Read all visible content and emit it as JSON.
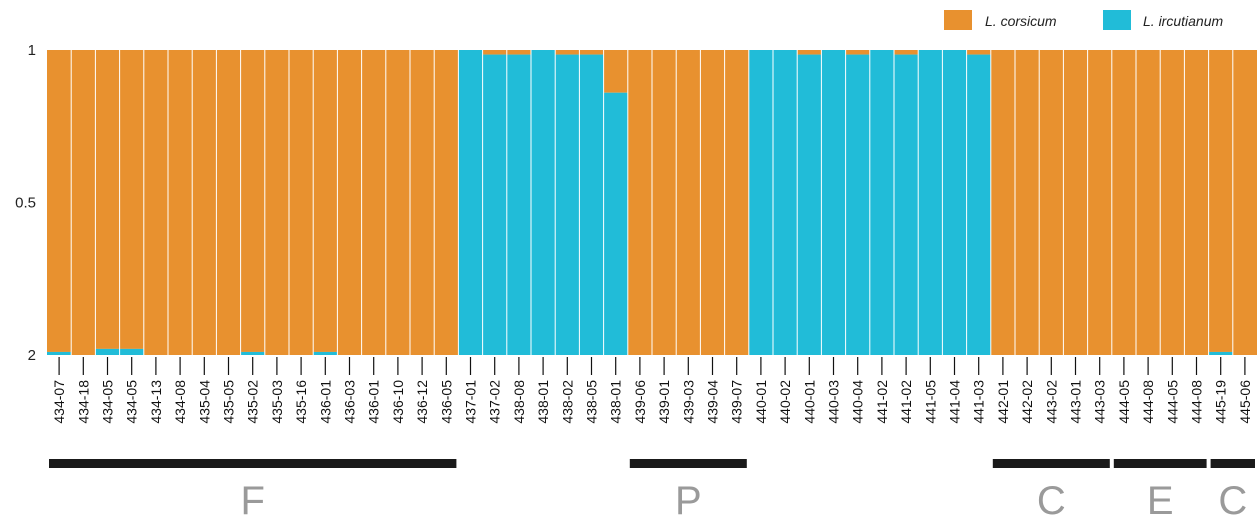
{
  "chart_data": {
    "type": "bar",
    "stacked": true,
    "ylim": [
      0,
      1
    ],
    "yticks": [
      {
        "value": 1,
        "label": "1"
      },
      {
        "value": 0.5,
        "label": "0.5"
      },
      {
        "value": 0,
        "label": "2"
      }
    ],
    "legend_position": "top-right",
    "series": [
      {
        "name": "L. corsicum",
        "color": "#E8912F"
      },
      {
        "name": "L. ircutianum",
        "color": "#21BCD8"
      }
    ],
    "categories": [
      "434-07",
      "434-18",
      "434-05",
      "434-05",
      "434-13",
      "434-08",
      "435-04",
      "435-05",
      "435-02",
      "435-03",
      "435-16",
      "436-01",
      "436-03",
      "436-01",
      "436-10",
      "436-12",
      "436-05",
      "437-01",
      "437-02",
      "438-08",
      "438-01",
      "438-02",
      "438-05",
      "438-01",
      "439-06",
      "439-01",
      "439-03",
      "439-04",
      "439-07",
      "440-01",
      "440-02",
      "440-01",
      "440-03",
      "440-04",
      "441-02",
      "441-02",
      "441-05",
      "441-04",
      "441-03",
      "442-01",
      "442-02",
      "443-02",
      "443-01",
      "443-03",
      "444-05",
      "444-08",
      "444-05",
      "444-08",
      "445-19",
      "445-06"
    ],
    "ircutianum_fraction": [
      0.01,
      0,
      0.02,
      0.02,
      0,
      0,
      0,
      0,
      0.01,
      0,
      0,
      0.01,
      0,
      0,
      0,
      0,
      0,
      1,
      0.985,
      0.985,
      1,
      0.985,
      0.985,
      0.86,
      0,
      0,
      0,
      0,
      0,
      1,
      1,
      0.985,
      1,
      0.985,
      1,
      0.985,
      1,
      1,
      0.985,
      0,
      0,
      0,
      0,
      0,
      0,
      0,
      0,
      0,
      0.01,
      0
    ],
    "groups": [
      {
        "label": "F",
        "from": 0,
        "to": 16
      },
      {
        "label": "P",
        "from": 24,
        "to": 28
      },
      {
        "label": "C",
        "from": 39,
        "to": 43
      },
      {
        "label": "E",
        "from": 44,
        "to": 47
      },
      {
        "label": "C",
        "from": 48,
        "to": 49
      }
    ]
  }
}
